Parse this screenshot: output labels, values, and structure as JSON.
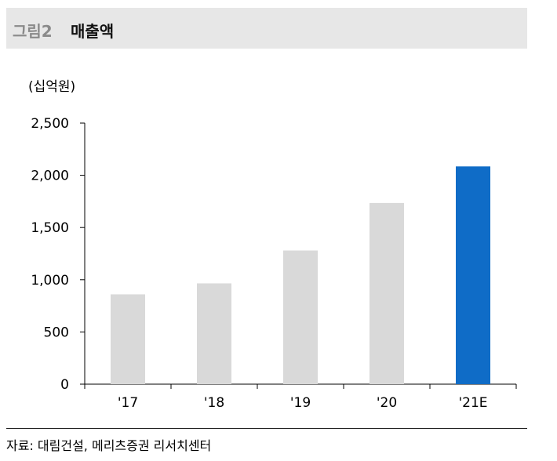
{
  "header": {
    "figure_label": "그림2",
    "title": "매출액"
  },
  "unit_label": "(십억원)",
  "source": "자료: 대림건설, 메리츠증권 리서치센터",
  "colors": {
    "actual": "#d9d9d9",
    "estimate": "#0f6cc7",
    "header_bg": "#e7e7e7"
  },
  "chart_data": {
    "type": "bar",
    "title": "매출액",
    "ylabel": "(십억원)",
    "categories": [
      "'17",
      "'18",
      "'19",
      "'20",
      "'21E"
    ],
    "values": [
      860,
      965,
      1280,
      1735,
      2085
    ],
    "ylim": [
      0,
      2500
    ],
    "yticks": [
      "0",
      "500",
      "1,000",
      "1,500",
      "2,000",
      "2,500"
    ],
    "grid": false,
    "legend": "none"
  }
}
